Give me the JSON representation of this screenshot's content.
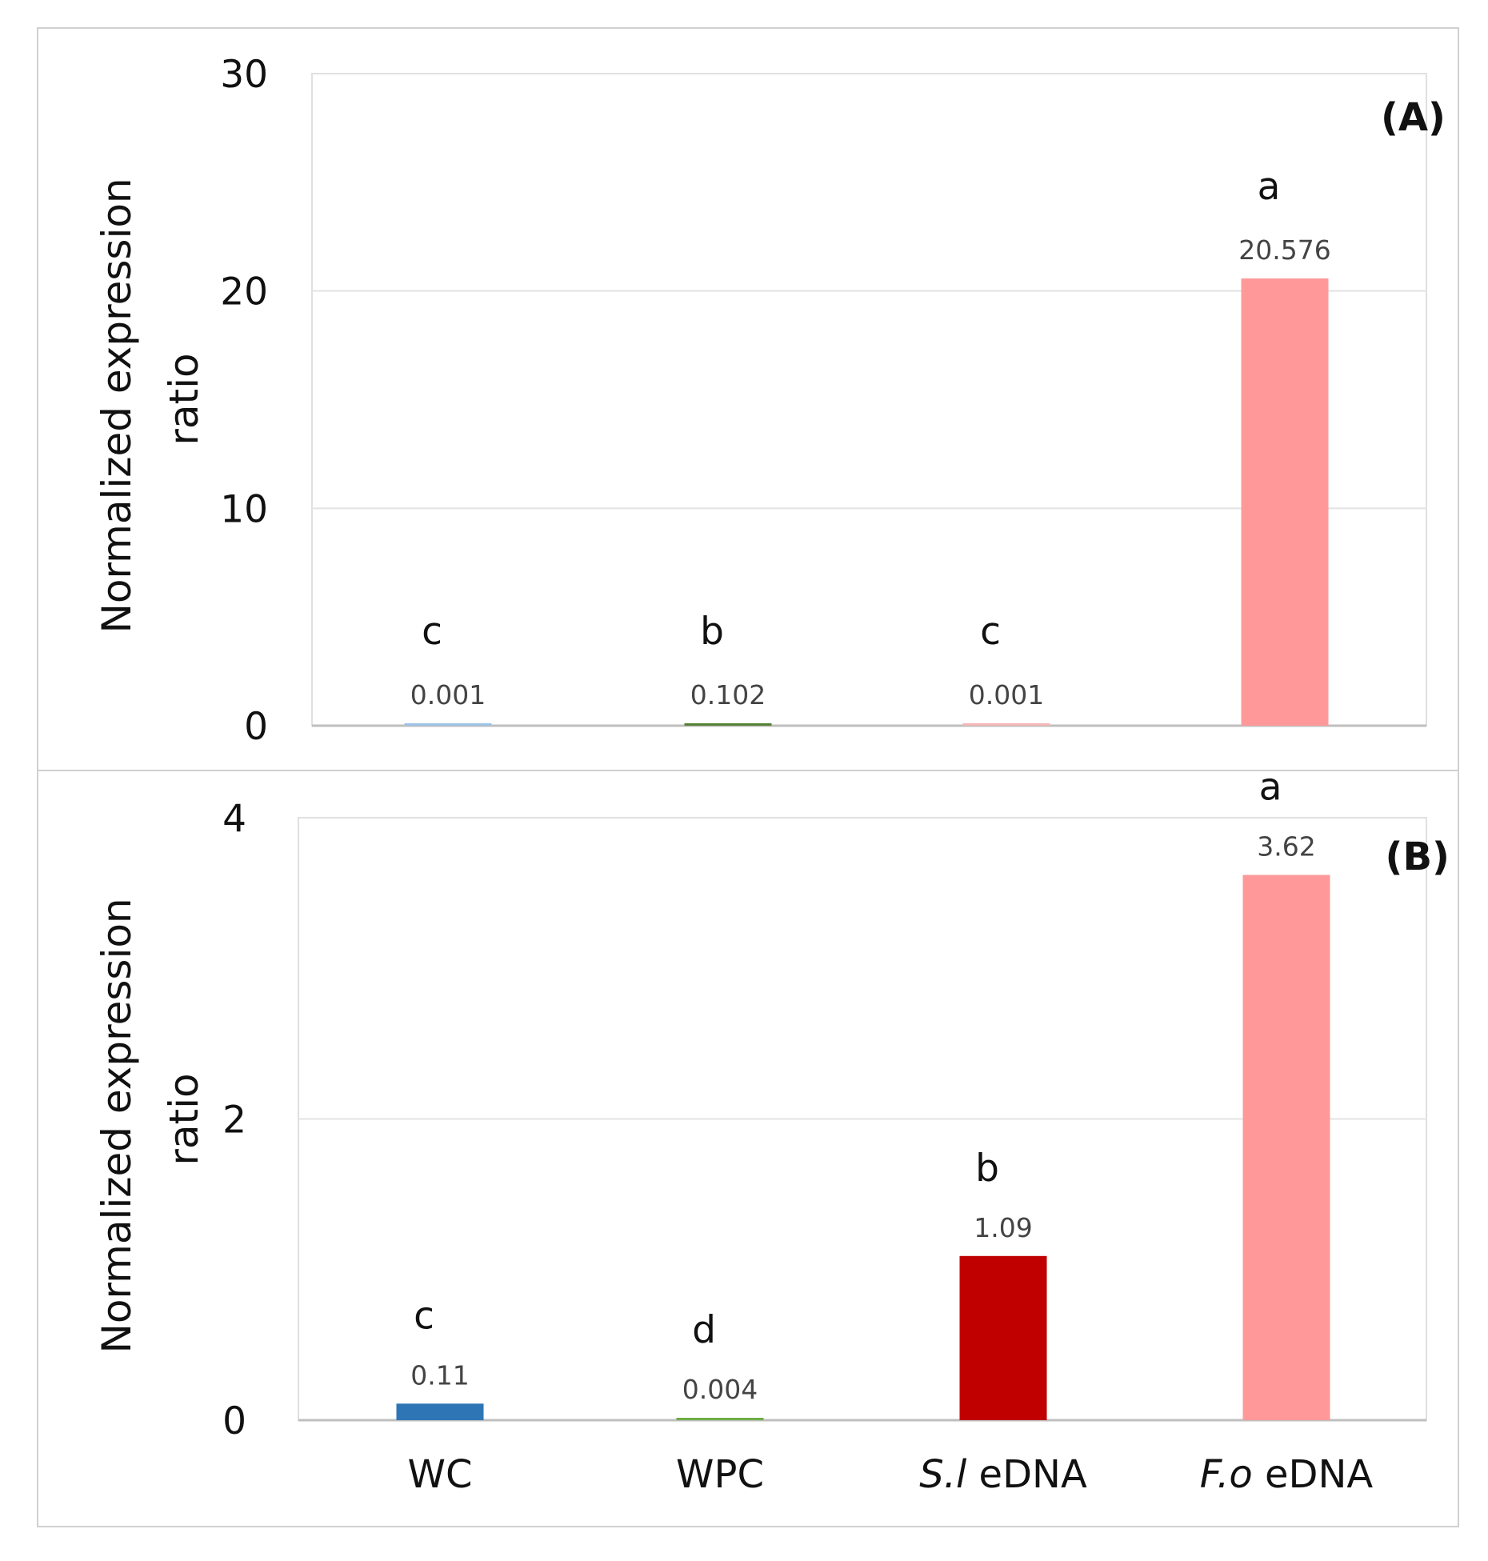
{
  "chart_data": [
    {
      "type": "bar",
      "panel_label": "(A)",
      "ylabel_line1": "Normalized expression",
      "ylabel_line2": "ratio",
      "ylim": [
        0,
        30
      ],
      "yticks": [
        "0",
        "10",
        "20",
        "30"
      ],
      "grid": true,
      "categories": [
        "WC",
        "WPC",
        "S.l eDNA",
        "F.o eDNA"
      ],
      "values": [
        0.001,
        0.102,
        0.001,
        20.576
      ],
      "value_labels": [
        "0.001",
        "0.102",
        "0.001",
        "20.576"
      ],
      "significance": [
        "c",
        "b",
        "c",
        "a"
      ],
      "colors": [
        "#9dc3e6",
        "#548235",
        "#f4b6b6",
        "#ff9999"
      ]
    },
    {
      "type": "bar",
      "panel_label": "(B)",
      "ylabel_line1": "Normalized expression",
      "ylabel_line2": "ratio",
      "ylim": [
        0,
        4
      ],
      "yticks": [
        "0",
        "2",
        "4"
      ],
      "grid": true,
      "categories": [
        "WC",
        "WPC",
        "S.l eDNA",
        "F.o eDNA"
      ],
      "category_labels": [
        {
          "italic": "",
          "rest": "WC"
        },
        {
          "italic": "",
          "rest": "WPC"
        },
        {
          "italic": "S.l",
          "rest": " eDNA"
        },
        {
          "italic": "F.o",
          "rest": " eDNA"
        }
      ],
      "values": [
        0.11,
        0.004,
        1.09,
        3.62
      ],
      "value_labels": [
        "0.11",
        "0.004",
        "1.09",
        "3.62"
      ],
      "significance": [
        "c",
        "d",
        "b",
        "a"
      ],
      "colors": [
        "#2e75b6",
        "#70ad47",
        "#c00000",
        "#ff9999"
      ]
    }
  ]
}
